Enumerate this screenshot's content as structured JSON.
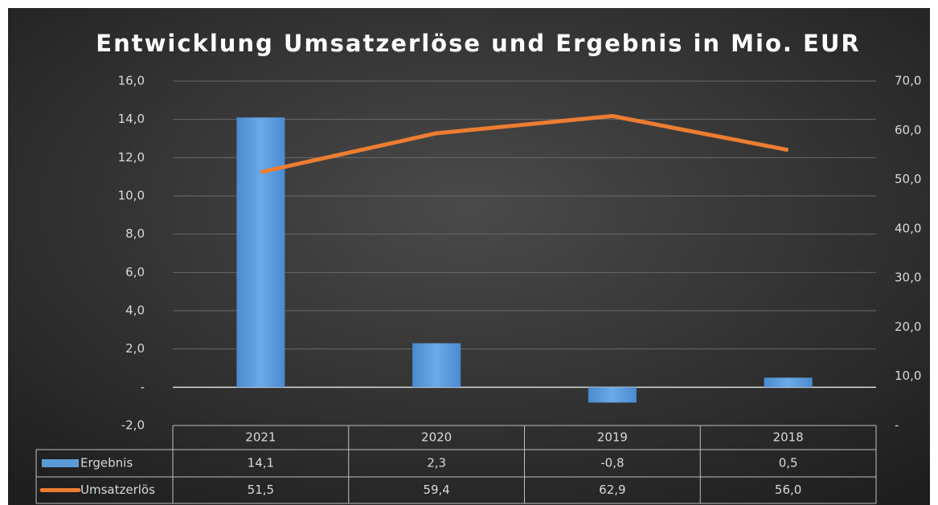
{
  "chart_data": {
    "type": "bar",
    "title": "Entwicklung Umsatzerlöse und Ergebnis in Mio. EUR",
    "categories": [
      "2021",
      "2020",
      "2019",
      "2018"
    ],
    "series": [
      {
        "name": "Ergebnis",
        "type": "bar",
        "color": "#5b9bd5",
        "values": [
          14.1,
          2.3,
          -0.8,
          0.5
        ],
        "value_labels": [
          "14,1",
          "2,3",
          "-0,8",
          "0,5"
        ]
      },
      {
        "name": "Umsatzerlös",
        "type": "line",
        "axis": "y2",
        "color": "#ed7d31",
        "values": [
          51.5,
          59.4,
          62.9,
          56.0
        ],
        "value_labels": [
          "51,5",
          "59,4",
          "62,9",
          "56,0"
        ]
      }
    ],
    "ylim": [
      -2,
      16
    ],
    "yticks": [
      {
        "value": -2,
        "label": "-2,0"
      },
      {
        "value": 0,
        "label": "-"
      },
      {
        "value": 2,
        "label": "2,0"
      },
      {
        "value": 4,
        "label": "4,0"
      },
      {
        "value": 6,
        "label": "6,0"
      },
      {
        "value": 8,
        "label": "8,0"
      },
      {
        "value": 10,
        "label": "10,0"
      },
      {
        "value": 12,
        "label": "12,0"
      },
      {
        "value": 14,
        "label": "14,0"
      },
      {
        "value": 16,
        "label": "16,0"
      }
    ],
    "y2lim": [
      0,
      70
    ],
    "y2ticks": [
      {
        "value": 0,
        "label": "-"
      },
      {
        "value": 10,
        "label": "10,0"
      },
      {
        "value": 20,
        "label": "20,0"
      },
      {
        "value": 30,
        "label": "30,0"
      },
      {
        "value": 40,
        "label": "40,0"
      },
      {
        "value": 50,
        "label": "50,0"
      },
      {
        "value": 60,
        "label": "60,0"
      },
      {
        "value": 70,
        "label": "70,0"
      }
    ],
    "grid": true
  }
}
